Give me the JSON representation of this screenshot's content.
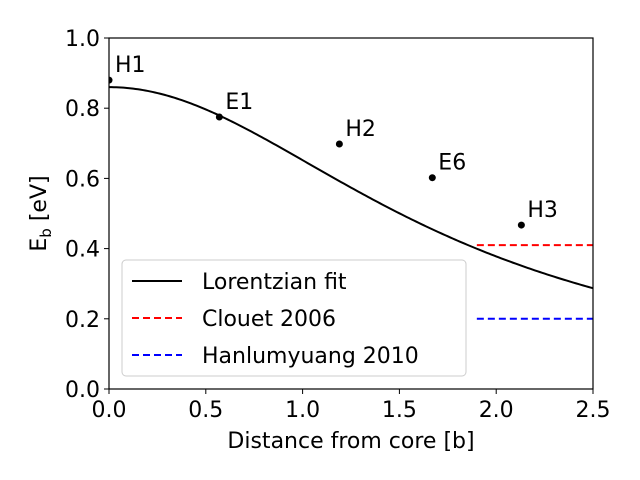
{
  "chart_data": {
    "type": "scatter",
    "xlabel": "Distance from core [b]",
    "ylabel": "E",
    "ylabel_sub": "b",
    "ylabel_unit": " [eV]",
    "xlim": [
      0,
      2.5
    ],
    "ylim": [
      0,
      1.0
    ],
    "xticks": [
      0.0,
      0.5,
      1.0,
      1.5,
      2.0,
      2.5
    ],
    "xtick_labels": [
      "0.0",
      "0.5",
      "1.0",
      "1.5",
      "2.0",
      "2.5"
    ],
    "yticks": [
      0.0,
      0.2,
      0.4,
      0.6,
      0.8,
      1.0
    ],
    "ytick_labels": [
      "0.0",
      "0.2",
      "0.4",
      "0.6",
      "0.8",
      "1.0"
    ],
    "grid": false,
    "legend_position": "lower-left",
    "points": [
      {
        "label": "H1",
        "x": 0.0,
        "y": 0.88
      },
      {
        "label": "E1",
        "x": 0.57,
        "y": 0.775
      },
      {
        "label": "H2",
        "x": 1.19,
        "y": 0.698
      },
      {
        "label": "E6",
        "x": 1.67,
        "y": 0.602
      },
      {
        "label": "H3",
        "x": 2.13,
        "y": 0.467
      }
    ],
    "series": [
      {
        "name": "Lorentzian fit",
        "type": "line",
        "style": "solid",
        "color": "#000000",
        "amplitude": 0.86,
        "width": 1.77,
        "x_start": 0.0,
        "x_end": 2.5
      },
      {
        "name": "Clouet 2006",
        "type": "hline",
        "style": "dashed",
        "color": "#ff0000",
        "y": 0.41,
        "x_start": 1.9,
        "x_end": 2.5
      },
      {
        "name": "Hanlumyuang 2010",
        "type": "hline",
        "style": "dashed",
        "color": "#0000ff",
        "y": 0.2,
        "x_start": 1.9,
        "x_end": 2.5
      }
    ]
  }
}
